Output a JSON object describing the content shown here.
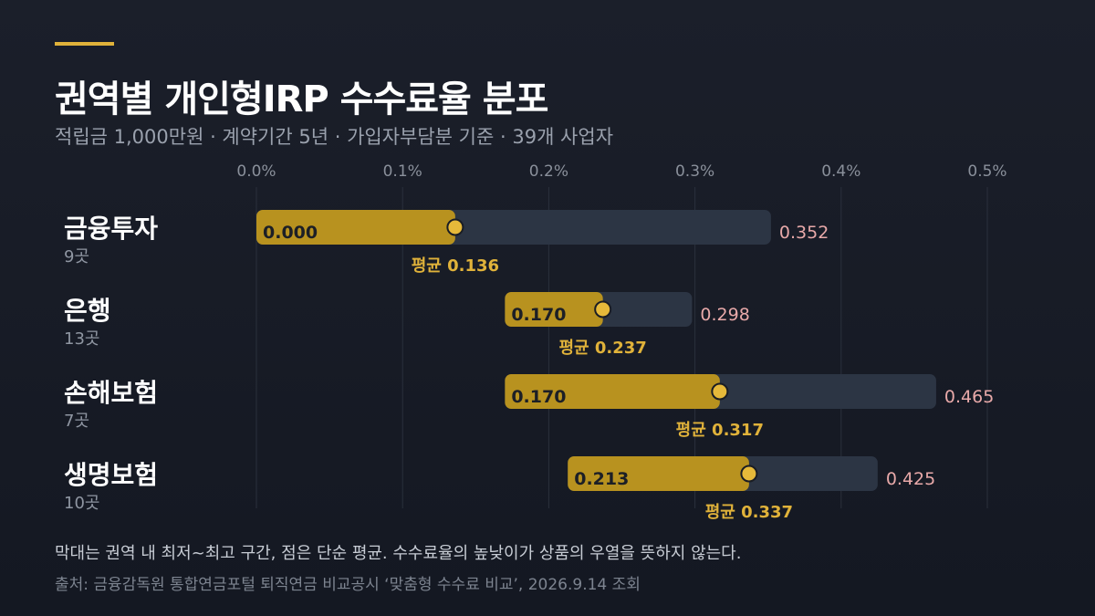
{
  "title": "권역별 개인형IRP 수수료율 분포",
  "subtitle": "적립금 1,000만원  ·  계약기간 5년  ·  가입자부담분 기준  ·  39개 사업자",
  "note": "막대는 권역 내 최저~최고 구간, 점은 단순 평균. 수수료율의 높낮이가 상품의 우열을 뜻하지 않는다.",
  "source": "출처: 금융감독원 통합연금포털 퇴직연금 비교공시 ‘맞춤형 수수료 비교’, 2026.9.14 조회",
  "colors": {
    "accent": "#e0b23a",
    "range_fill": "#b8921f",
    "track": "#2c3544",
    "max_text": "#e8a9a9",
    "avg_text": "#e0b23a"
  },
  "chart_data": {
    "type": "bar",
    "subtype": "range-with-average",
    "xlim": [
      0,
      0.5
    ],
    "x_ticks": [
      "0.0%",
      "0.1%",
      "0.2%",
      "0.3%",
      "0.4%",
      "0.5%"
    ],
    "grid": true,
    "avg_prefix": "평균",
    "categories": [
      {
        "name": "금융투자",
        "count_label": "9곳",
        "min": 0.0,
        "min_label": "0.000",
        "avg": 0.136,
        "avg_label": "0.136",
        "max": 0.352,
        "max_label": "0.352"
      },
      {
        "name": "은행",
        "count_label": "13곳",
        "min": 0.17,
        "min_label": "0.170",
        "avg": 0.237,
        "avg_label": "0.237",
        "max": 0.298,
        "max_label": "0.298"
      },
      {
        "name": "손해보험",
        "count_label": "7곳",
        "min": 0.17,
        "min_label": "0.170",
        "avg": 0.317,
        "avg_label": "0.317",
        "max": 0.465,
        "max_label": "0.465"
      },
      {
        "name": "생명보험",
        "count_label": "10곳",
        "min": 0.213,
        "min_label": "0.213",
        "avg": 0.337,
        "avg_label": "0.337",
        "max": 0.425,
        "max_label": "0.425"
      }
    ]
  }
}
